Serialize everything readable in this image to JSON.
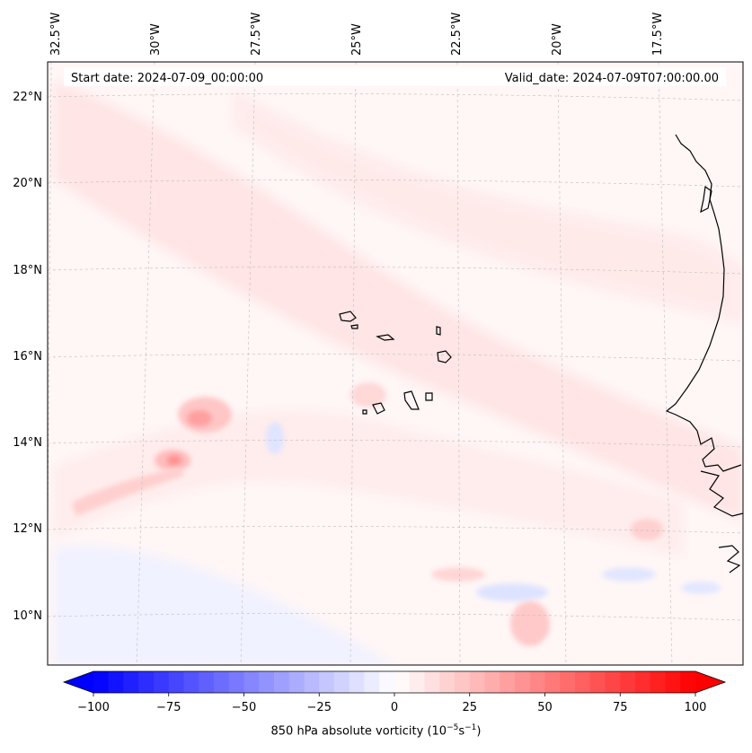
{
  "header": {
    "start_date": "Start date: 2024-07-09_00:00:00",
    "valid_date": "Valid_date: 2024-07-09T07:00:00.00"
  },
  "lon_labels": [
    "32.5°W",
    "30°W",
    "27.5°W",
    "25°W",
    "22.5°W",
    "20°W",
    "17.5°W"
  ],
  "lat_labels": [
    "22°N",
    "20°N",
    "18°N",
    "16°N",
    "14°N",
    "12°N",
    "10°N"
  ],
  "colorbar": {
    "min": -100,
    "max": 100,
    "n_bins": 40,
    "ticks": [
      "−100",
      "−75",
      "−50",
      "−25",
      "0",
      "25",
      "50",
      "75",
      "100"
    ],
    "tick_values": [
      -100,
      -75,
      -50,
      -25,
      0,
      25,
      50,
      75,
      100
    ],
    "label_main": "850 hPa absolute vorticity (10",
    "label_exp1": "−5",
    "label_mid": "s",
    "label_exp2": "−1",
    "label_end": ")"
  },
  "colors": {
    "negative": "#0000ff",
    "positive": "#ff0000",
    "coastline": "#000000",
    "gridline": "#bdbdbd"
  }
}
